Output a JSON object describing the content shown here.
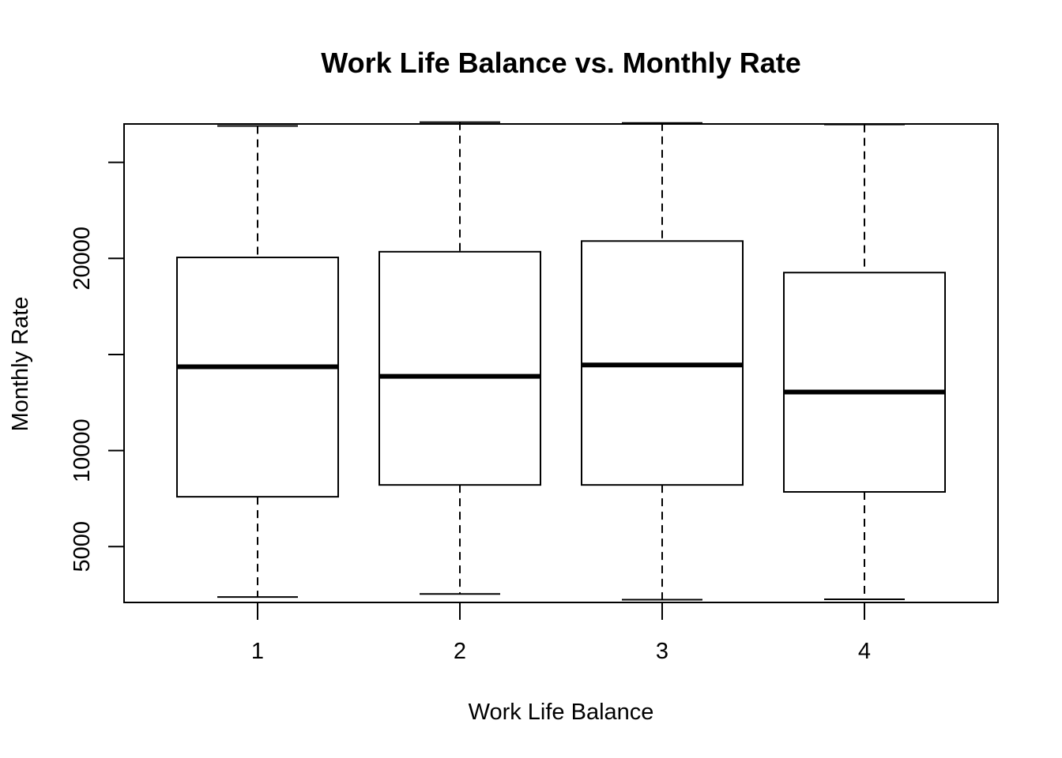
{
  "chart_data": {
    "type": "boxplot",
    "title": "Work Life Balance vs. Monthly Rate",
    "xlabel": "Work Life Balance",
    "ylabel": "Monthly Rate",
    "categories": [
      "1",
      "2",
      "3",
      "4"
    ],
    "y_ticks": [
      5000,
      10000,
      15000,
      20000,
      25000
    ],
    "y_tick_labels": [
      "5000",
      "10000",
      "",
      "20000",
      ""
    ],
    "ylim": [
      2094,
      26999
    ],
    "grid": false,
    "legend": "none",
    "boxes": [
      {
        "category": "1",
        "whisker_low": 2374,
        "q1": 7595,
        "median": 14361,
        "q3": 20052,
        "whisker_high": 26894
      },
      {
        "category": "2",
        "whisker_low": 2534,
        "q1": 8211,
        "median": 13863,
        "q3": 20349,
        "whisker_high": 27093
      },
      {
        "category": "3",
        "whisker_low": 2237,
        "q1": 8211,
        "median": 14455,
        "q3": 20905,
        "whisker_high": 27051
      },
      {
        "category": "4",
        "whisker_low": 2259,
        "q1": 7848,
        "median": 13044,
        "q3": 19263,
        "whisker_high": 26971
      }
    ]
  }
}
